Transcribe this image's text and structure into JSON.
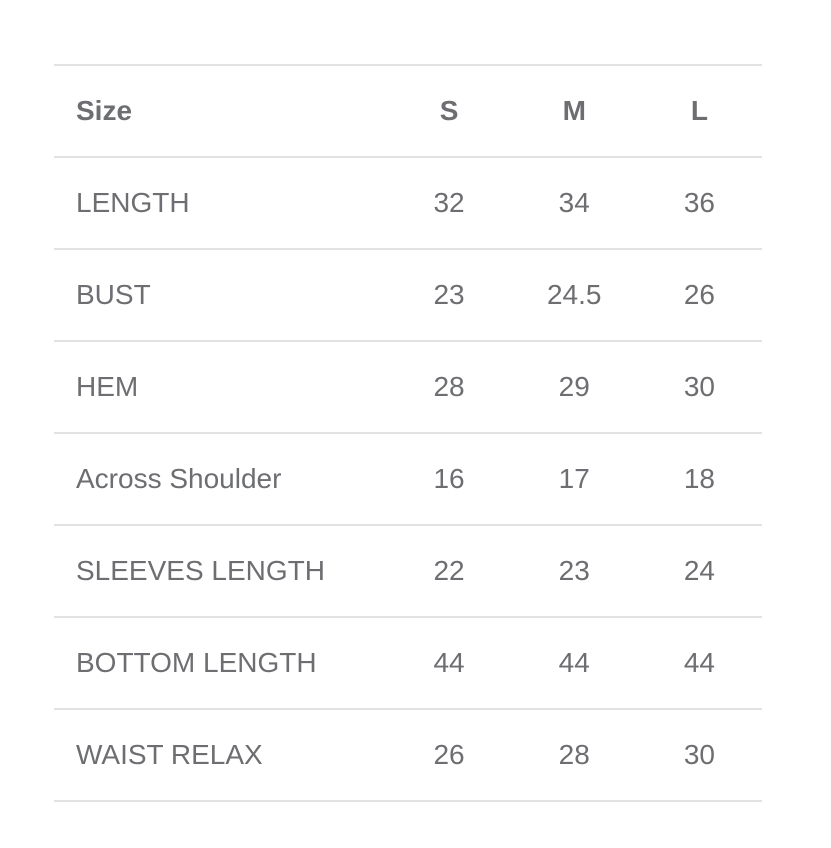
{
  "colors": {
    "text": "#6d6e71",
    "border": "#e2e2e2"
  },
  "table": {
    "headers": [
      "Size",
      "S",
      "M",
      "L"
    ],
    "rows": [
      {
        "label": "LENGTH",
        "values": [
          "32",
          "34",
          "36"
        ]
      },
      {
        "label": "BUST",
        "values": [
          "23",
          "24.5",
          "26"
        ]
      },
      {
        "label": "HEM",
        "values": [
          "28",
          "29",
          "30"
        ]
      },
      {
        "label": "Across Shoulder",
        "values": [
          "16",
          "17",
          "18"
        ]
      },
      {
        "label": "SLEEVES LENGTH",
        "values": [
          "22",
          "23",
          "24"
        ]
      },
      {
        "label": "BOTTOM LENGTH",
        "values": [
          "44",
          "44",
          "44"
        ]
      },
      {
        "label": "WAIST RELAX",
        "values": [
          "26",
          "28",
          "30"
        ]
      }
    ]
  }
}
